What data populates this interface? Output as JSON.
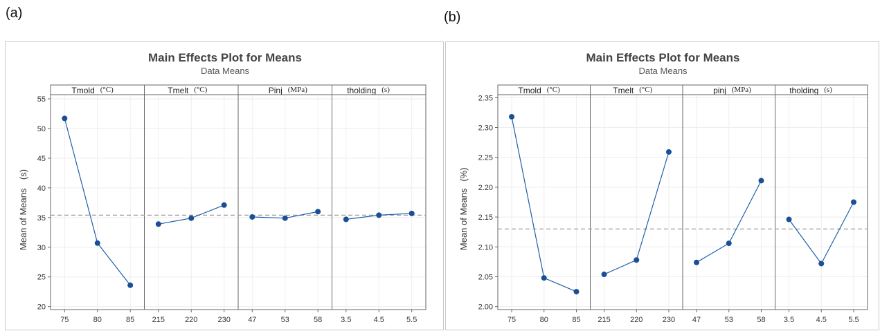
{
  "panel_labels": [
    "(a)",
    "(b)"
  ],
  "colors": {
    "series": "#1f5fa8",
    "marker": "#1a4f96",
    "ref": "#999999",
    "grid": "#eeeeee",
    "frame": "#666666"
  },
  "chart_data": [
    {
      "type": "line",
      "panel": "(a)",
      "title": "Main Effects Plot for Means",
      "subtitle": "Data Means",
      "ylabel": "Mean of Means",
      "ylabel_unit": "(s)",
      "ylim": [
        19.5,
        55.7
      ],
      "yticks": [
        20,
        25,
        30,
        35,
        40,
        45,
        50,
        55
      ],
      "ytick_labels": [
        "20",
        "25",
        "30",
        "35",
        "40",
        "45",
        "50",
        "55"
      ],
      "reference_line": 35.4,
      "grid": true,
      "factors": [
        {
          "name": "Tmold",
          "unit": "(°C)",
          "levels": [
            "75",
            "80",
            "85"
          ],
          "values": [
            51.7,
            30.7,
            23.6
          ]
        },
        {
          "name": "Tmelt",
          "unit": "(°C)",
          "levels": [
            "215",
            "220",
            "230"
          ],
          "values": [
            33.9,
            34.9,
            37.1
          ]
        },
        {
          "name": "Pinj",
          "unit": "(MPa)",
          "levels": [
            "47",
            "53",
            "58"
          ],
          "values": [
            35.1,
            34.9,
            36.0
          ]
        },
        {
          "name": "tholding",
          "unit": "(s)",
          "levels": [
            "3.5",
            "4.5",
            "5.5"
          ],
          "values": [
            34.7,
            35.4,
            35.7
          ]
        }
      ]
    },
    {
      "type": "line",
      "panel": "(b)",
      "title": "Main Effects Plot for Means",
      "subtitle": "Data Means",
      "ylabel": "Mean of Means",
      "ylabel_unit": "(%)",
      "ylim": [
        1.995,
        2.355
      ],
      "yticks": [
        2.0,
        2.05,
        2.1,
        2.15,
        2.2,
        2.25,
        2.3,
        2.35
      ],
      "ytick_labels": [
        "2.00",
        "2.05",
        "2.10",
        "2.15",
        "2.20",
        "2.25",
        "2.30",
        "2.35"
      ],
      "reference_line": 2.13,
      "grid": true,
      "factors": [
        {
          "name": "Tmold",
          "unit": "(°C)",
          "levels": [
            "75",
            "80",
            "85"
          ],
          "values": [
            2.318,
            2.048,
            2.025
          ]
        },
        {
          "name": "Tmelt",
          "unit": "(°C)",
          "levels": [
            "215",
            "220",
            "230"
          ],
          "values": [
            2.054,
            2.078,
            2.259
          ]
        },
        {
          "name": "pinj",
          "unit": "(MPa)",
          "levels": [
            "47",
            "53",
            "58"
          ],
          "values": [
            2.074,
            2.106,
            2.211
          ]
        },
        {
          "name": "tholding",
          "unit": "(s)",
          "levels": [
            "3.5",
            "4.5",
            "5.5"
          ],
          "values": [
            2.146,
            2.072,
            2.175
          ]
        }
      ]
    }
  ]
}
